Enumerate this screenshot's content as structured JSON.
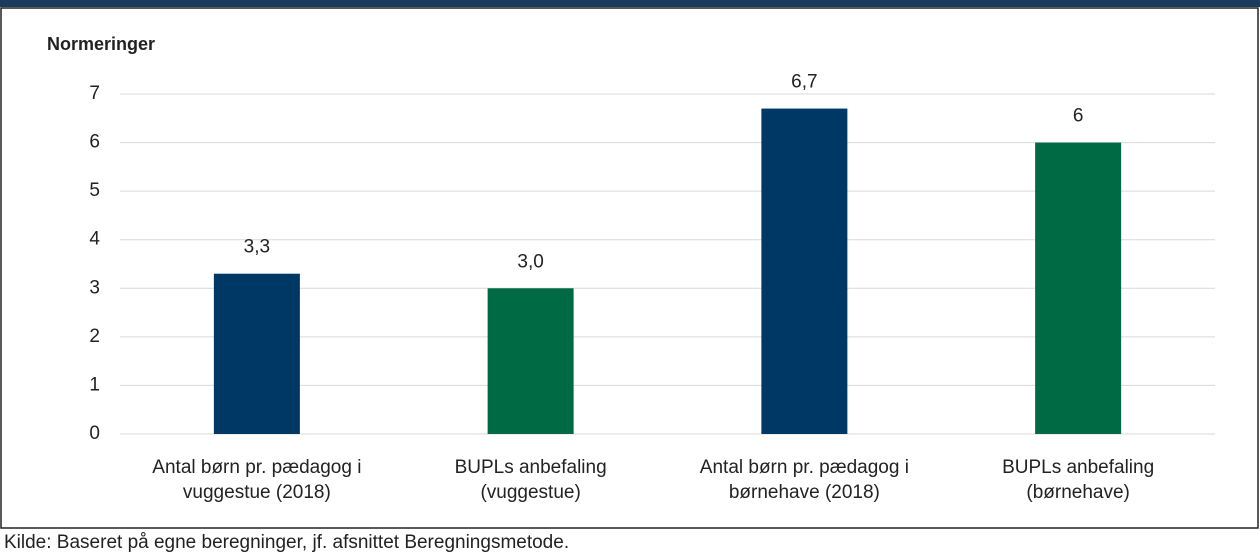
{
  "chart_data": {
    "type": "bar",
    "y_axis_label": "Normeringer",
    "categories": [
      [
        "Antal børn pr. pædagog i",
        "vuggestue (2018)"
      ],
      [
        "BUPLs anbefaling",
        "(vuggestue)"
      ],
      [
        "Antal børn pr. pædagog i",
        "børnehave (2018)"
      ],
      [
        "BUPLs anbefaling",
        "(børnehave)"
      ]
    ],
    "values": [
      3.3,
      3.0,
      6.7,
      6
    ],
    "value_labels": [
      "3,3",
      "3,0",
      "6,7",
      "6"
    ],
    "colors": [
      "#003865",
      "#006a45",
      "#003865",
      "#006a45"
    ],
    "ylim": [
      0,
      7
    ],
    "yticks": [
      0,
      1,
      2,
      3,
      4,
      5,
      6,
      7
    ],
    "grid": true,
    "source": "Kilde: Baseret på egne beregninger, jf. afsnittet Beregningsmetode."
  }
}
